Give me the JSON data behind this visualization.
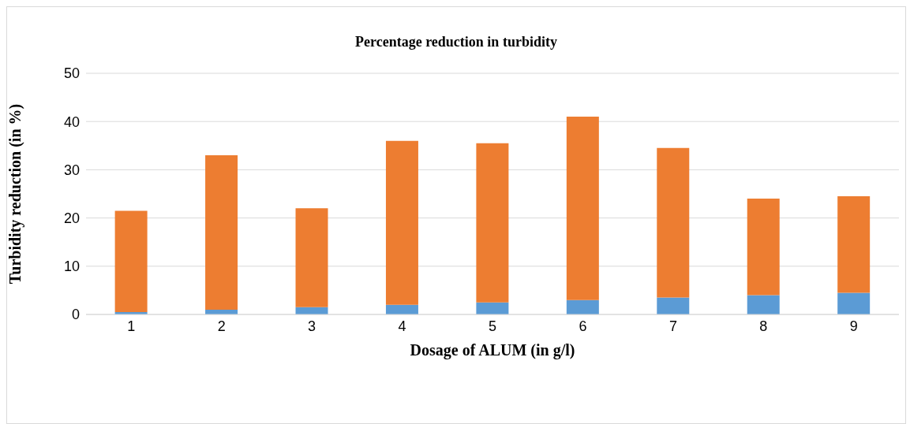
{
  "chart_data": {
    "type": "bar",
    "title": "Percentage reduction in turbidity",
    "xlabel": "Dosage of ALUM (in g/l)",
    "ylabel": "Turbidity reduction (in %)",
    "categories": [
      "1",
      "2",
      "3",
      "4",
      "5",
      "6",
      "7",
      "8",
      "9"
    ],
    "stacked": true,
    "series": [
      {
        "color": "#5b9bd5",
        "values": [
          0.5,
          1,
          1.5,
          2,
          2.5,
          3,
          3.5,
          4,
          4.5
        ]
      },
      {
        "color": "#ed7d31",
        "values": [
          21,
          32,
          20.5,
          34,
          33,
          38,
          31,
          20,
          20
        ]
      }
    ],
    "ylim": [
      0,
      50
    ],
    "yticks": [
      0,
      10,
      20,
      30,
      40,
      50
    ],
    "grid": "y",
    "legend": false
  }
}
